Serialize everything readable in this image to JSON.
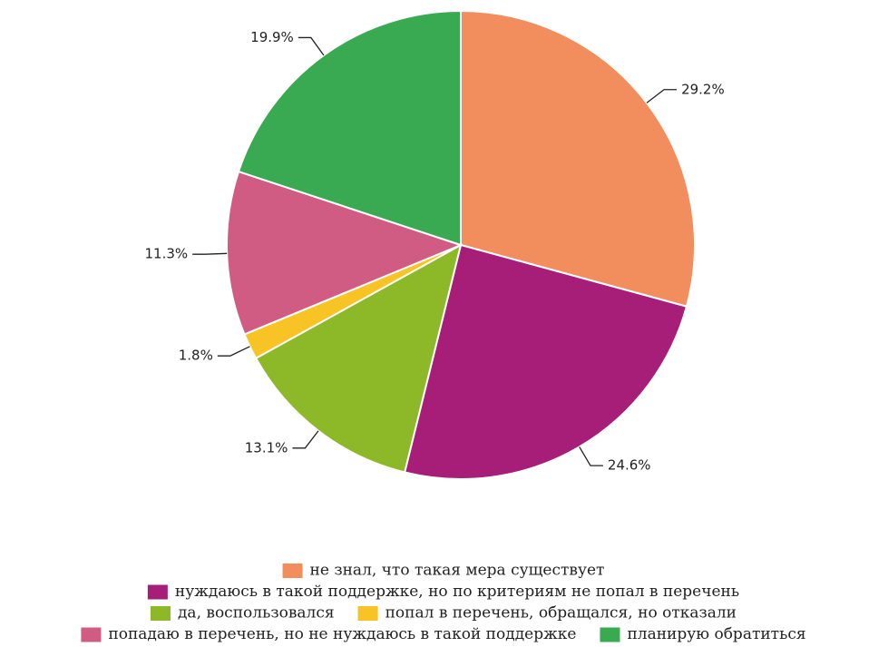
{
  "chart_data": {
    "type": "pie",
    "categories": [
      "не знал, что такая мера существует",
      "нуждаюсь в такой поддержке, но по критериям не попал в перечень",
      "да, воспользовался",
      "попал в перечень, обращался, но отказали",
      "попадаю в перечень, но не нуждаюсь в такой поддержке",
      "планирую обратиться"
    ],
    "values": [
      29.2,
      24.6,
      13.1,
      1.8,
      11.3,
      19.9
    ],
    "value_labels": [
      "29.2%",
      "24.6%",
      "13.1%",
      "1.8%",
      "11.3%",
      "19.9%"
    ],
    "colors": [
      "#f28e5e",
      "#a61e78",
      "#8db828",
      "#f7c325",
      "#d05c84",
      "#3aaa52"
    ]
  }
}
